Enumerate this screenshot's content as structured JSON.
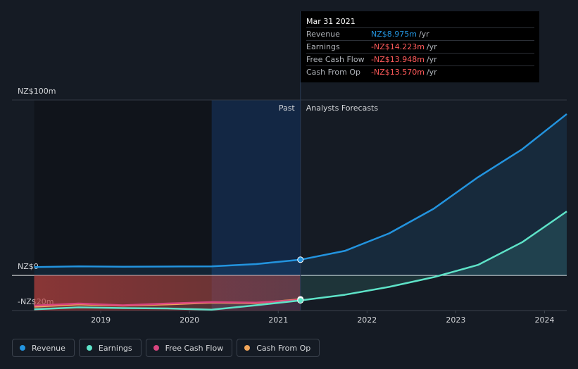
{
  "chart_data": {
    "type": "line",
    "x": [
      2018.25,
      2018.75,
      2019.25,
      2019.75,
      2020.25,
      2020.75,
      2021.25,
      2021.75,
      2022.25,
      2022.75,
      2023.25,
      2023.75,
      2024.25
    ],
    "xlim": [
      2018,
      2024.25
    ],
    "xticks": [
      2019,
      2020,
      2021,
      2022,
      2023,
      2024
    ],
    "ylim": [
      -20,
      100
    ],
    "yticks": [
      {
        "value": 100,
        "label": "NZ$100m"
      },
      {
        "value": 0,
        "label": "NZ$0"
      },
      {
        "value": -20,
        "label": "-NZ$20m"
      }
    ],
    "series": [
      {
        "name": "Revenue",
        "color": "#2394df",
        "values": [
          4.8,
          5.2,
          5.0,
          5.1,
          5.2,
          6.5,
          8.975,
          14,
          24,
          38,
          56,
          72,
          92
        ]
      },
      {
        "name": "Earnings",
        "color": "#5ee3c8",
        "values": [
          -19.3,
          -18.2,
          -18.6,
          -18.8,
          -19.5,
          -17,
          -14.223,
          -11,
          -6.5,
          -1,
          6,
          19,
          36.5
        ]
      },
      {
        "name": "Free Cash Flow",
        "color": "#d8457f",
        "values": [
          -17.2,
          -16,
          -17,
          -16,
          -15.2,
          -15.5,
          -13.948,
          null,
          null,
          null,
          null,
          null,
          null
        ]
      },
      {
        "name": "Cash From Op",
        "color": "#f2a65a",
        "values": [
          -17.8,
          -16.5,
          -17.2,
          -16.5,
          -15.5,
          -15.8,
          -13.57,
          null,
          null,
          null,
          null,
          null,
          null
        ]
      }
    ],
    "past_label": "Past",
    "forecast_label": "Analysts Forecasts",
    "tooltip": {
      "date": "Mar 31 2021",
      "values": [
        "NZ$8.975m",
        "-NZ$14.223m",
        "-NZ$13.948m",
        "-NZ$13.570m"
      ],
      "value_colors": [
        "#2394df",
        "#ff5a5a",
        "#ff5a5a",
        "#ff5a5a"
      ],
      "unit": "/yr"
    }
  }
}
